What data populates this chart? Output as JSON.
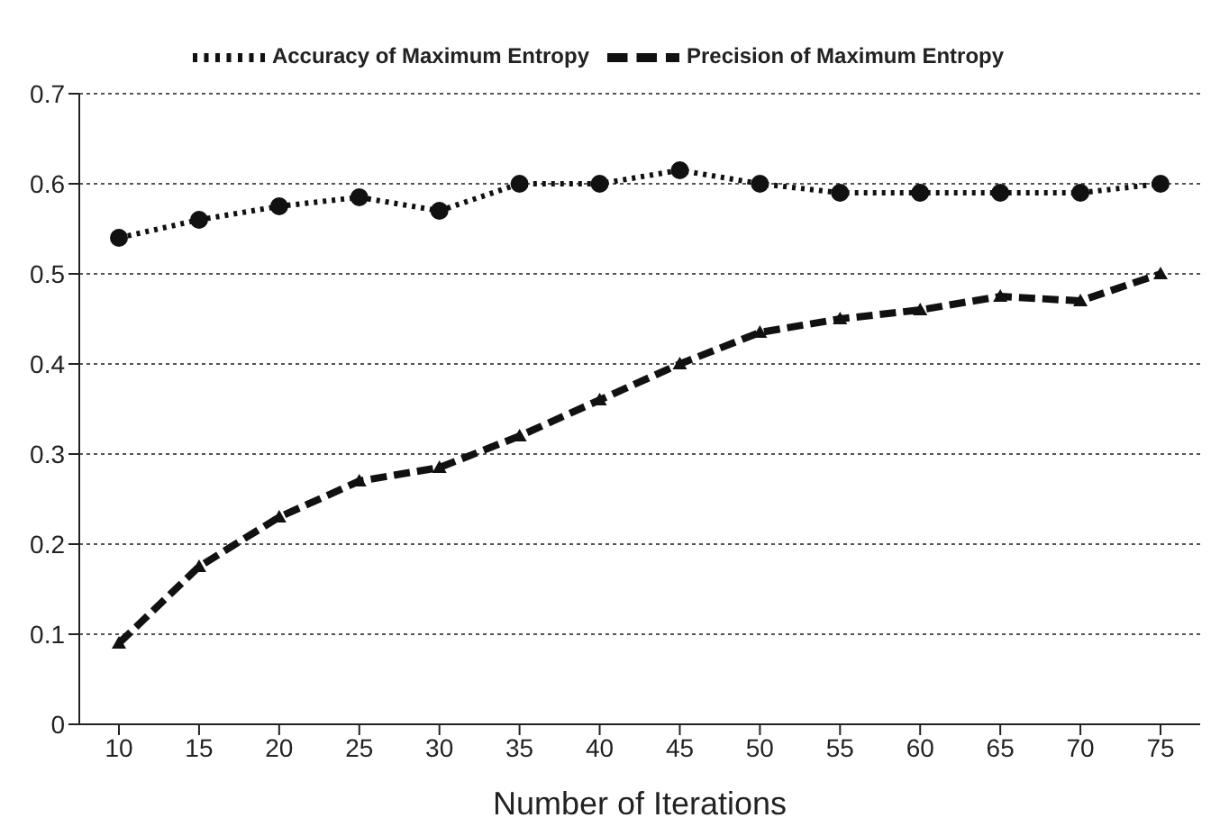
{
  "chart_data": {
    "type": "line",
    "xlabel": "Number of Iterations",
    "categories": [
      "10",
      "15",
      "20",
      "25",
      "30",
      "35",
      "40",
      "45",
      "50",
      "55",
      "60",
      "65",
      "70",
      "75"
    ],
    "series": [
      {
        "name": "Accuracy of Maximum Entropy",
        "color": "#111111",
        "marker": "circle",
        "line_style": "dotted",
        "values": [
          0.54,
          0.56,
          0.575,
          0.585,
          0.57,
          0.6,
          0.6,
          0.615,
          0.6,
          0.59,
          0.59,
          0.59,
          0.59,
          0.6
        ]
      },
      {
        "name": "Precision of Maximum Entropy",
        "color": "#111111",
        "marker": "triangle",
        "line_style": "dashed",
        "values": [
          0.09,
          0.175,
          0.23,
          0.27,
          0.285,
          0.32,
          0.36,
          0.4,
          0.435,
          0.45,
          0.46,
          0.475,
          0.47,
          0.5
        ]
      }
    ],
    "ylim": [
      0,
      0.7
    ],
    "yticks": [
      0,
      0.1,
      0.2,
      0.3,
      0.4,
      0.5,
      0.6,
      0.7
    ],
    "grid": "y",
    "legend": "top"
  }
}
